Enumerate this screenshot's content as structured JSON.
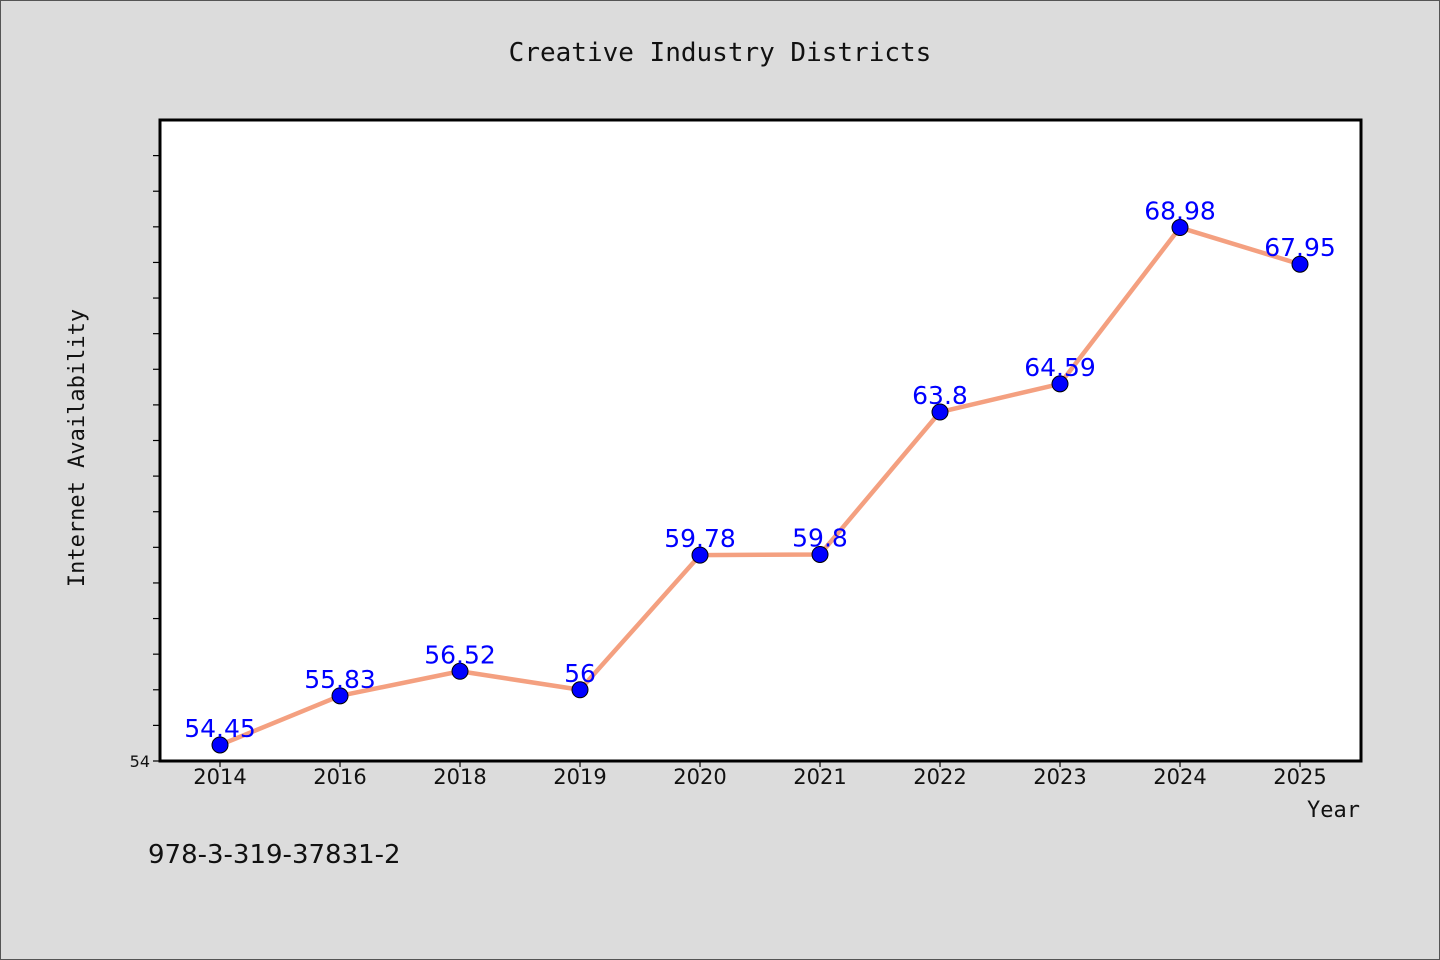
{
  "chart_data": {
    "type": "line",
    "title": "Creative Industry Districts",
    "xlabel": "Year",
    "ylabel": "Internet Availability",
    "categories": [
      "2014",
      "2016",
      "2018",
      "2019",
      "2020",
      "2021",
      "2022",
      "2023",
      "2024",
      "2025"
    ],
    "values": [
      54.45,
      55.83,
      56.52,
      56,
      59.78,
      59.8,
      63.8,
      64.59,
      68.98,
      67.95
    ],
    "data_labels": [
      "54.45",
      "55.83",
      "56.52",
      "56",
      "59.78",
      "59.8",
      "63.8",
      "64.59",
      "68.98",
      "67.95"
    ],
    "ylim": [
      54,
      72
    ],
    "y_tick_labels": [
      "54"
    ],
    "grid": false,
    "line_color": "#f4a080",
    "marker_color": "#0000ff",
    "label_color": "#0000ff"
  },
  "footer": {
    "code": "978-3-319-37831-2"
  }
}
